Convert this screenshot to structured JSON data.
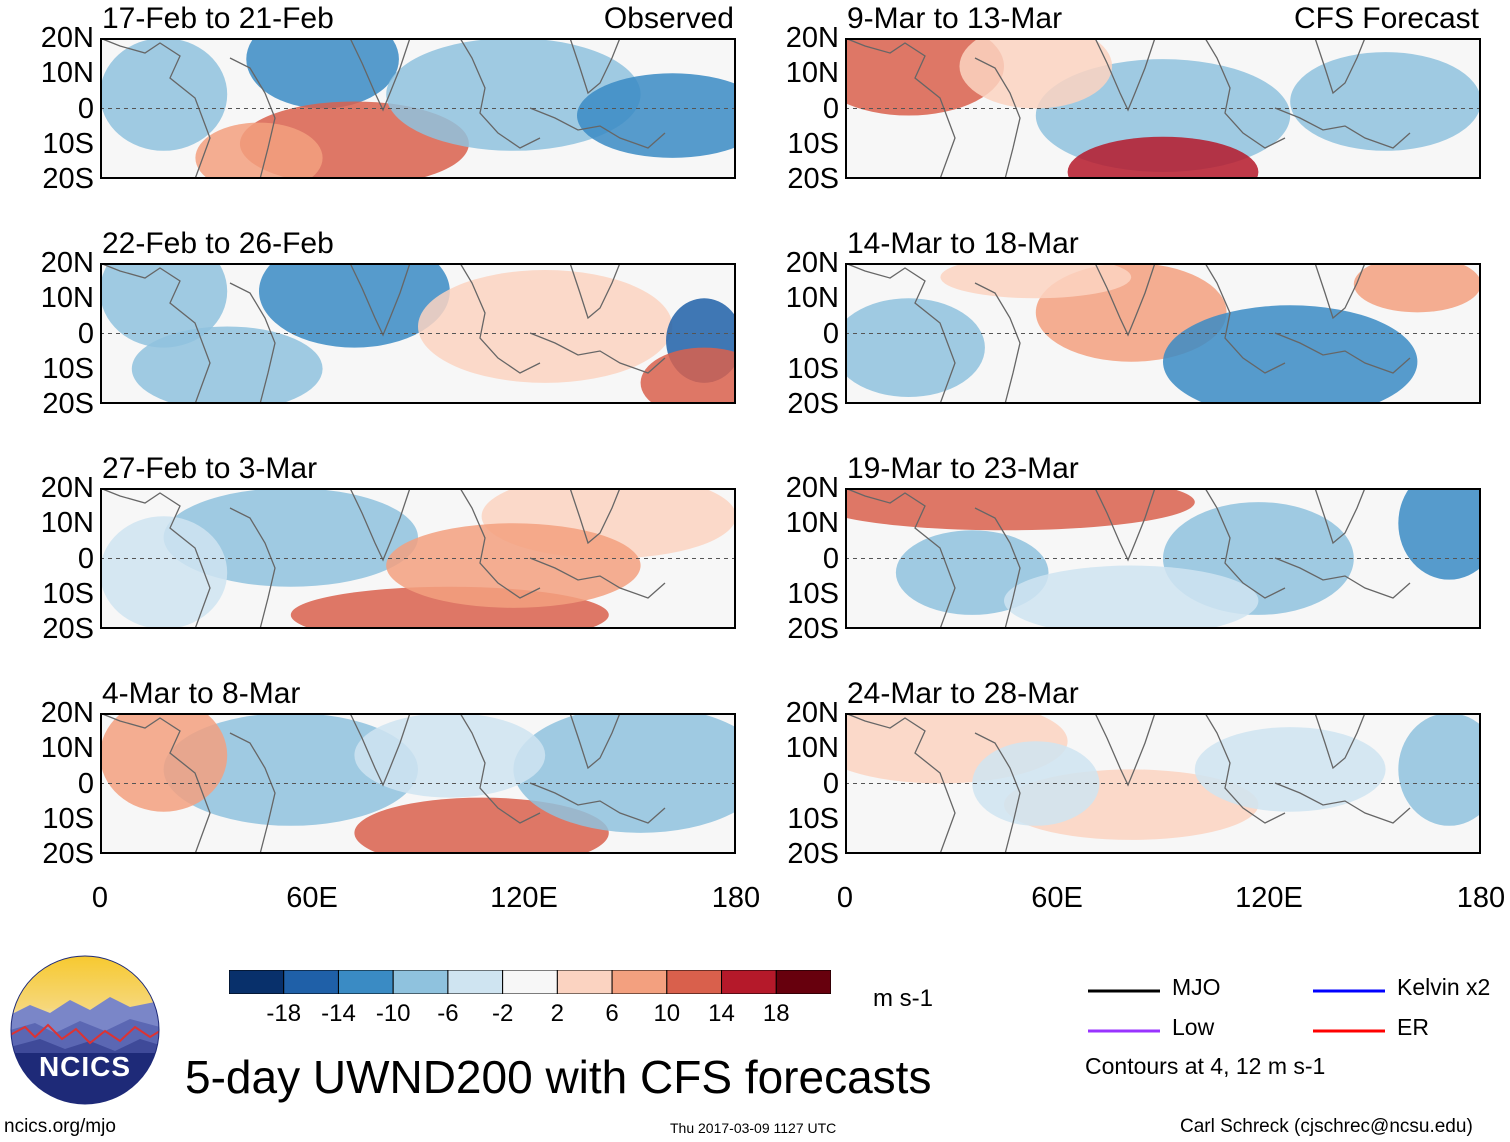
{
  "chart_data": {
    "type": "heatmap",
    "title": "5-day UWND200 with CFS forecasts",
    "variable": "UWND200",
    "units": "m s-1",
    "column_headers": [
      "Observed",
      "CFS Forecast"
    ],
    "y_ticks": [
      "20N",
      "10N",
      "0",
      "10S",
      "20S"
    ],
    "x_ticks": [
      "0",
      "60E",
      "120E",
      "180"
    ],
    "xlim": [
      0,
      180
    ],
    "ylim": [
      -20,
      20
    ],
    "panels": [
      {
        "period": "17-Feb to 21-Feb",
        "kind": "Observed"
      },
      {
        "period": "22-Feb to 26-Feb",
        "kind": "Observed"
      },
      {
        "period": "27-Feb to 3-Mar",
        "kind": "Observed"
      },
      {
        "period": "4-Mar to 8-Mar",
        "kind": "Observed"
      },
      {
        "period": "9-Mar to 13-Mar",
        "kind": "CFS Forecast"
      },
      {
        "period": "14-Mar to 18-Mar",
        "kind": "CFS Forecast"
      },
      {
        "period": "19-Mar to 23-Mar",
        "kind": "CFS Forecast"
      },
      {
        "period": "24-Mar to 28-Mar",
        "kind": "CFS Forecast"
      }
    ],
    "colorbar": {
      "labels": [
        "-18",
        "-14",
        "-10",
        "-6",
        "-2",
        "2",
        "6",
        "10",
        "14",
        "18"
      ],
      "colors": [
        "#08306b",
        "#1f60a8",
        "#3a8bc4",
        "#8fc2de",
        "#cfe4f1",
        "#f7f7f7",
        "#fbd3c1",
        "#f3a07f",
        "#d9604c",
        "#b5192a",
        "#67000d"
      ]
    },
    "legend": [
      {
        "name": "MJO",
        "color": "#000000"
      },
      {
        "name": "Kelvin x2",
        "color": "#0000ff"
      },
      {
        "name": "Low",
        "color": "#9933ff"
      },
      {
        "name": "ER",
        "color": "#ff0000"
      }
    ],
    "contour_note": "Contours at 4, 12 m s-1"
  },
  "footer": {
    "logo_text": "NCICS",
    "site": "ncics.org/mjo",
    "timestamp": "Thu 2017-03-09 1127 UTC",
    "author": "Carl Schreck (cjschrec@ncsu.edu)"
  }
}
